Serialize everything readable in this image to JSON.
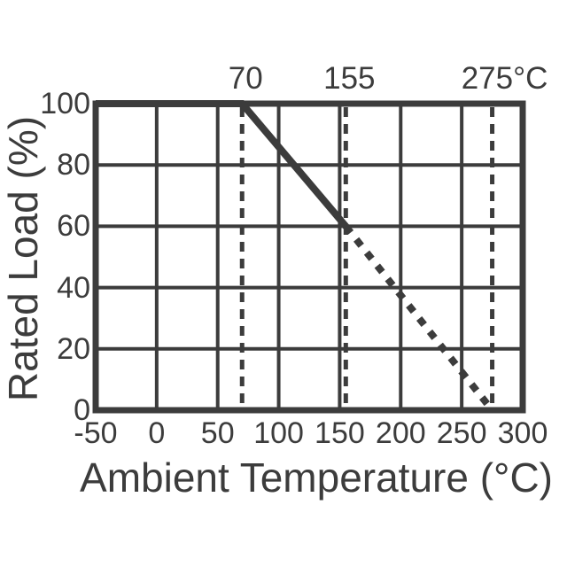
{
  "chart_data": {
    "type": "line",
    "title": "",
    "xlabel": "Ambient Temperature (°C)",
    "ylabel": "Rated Load (%)",
    "xlim": [
      -50,
      300
    ],
    "ylim": [
      0,
      100
    ],
    "x_ticks": [
      "-50",
      "0",
      "50",
      "100",
      "150",
      "200",
      "250",
      "300"
    ],
    "y_ticks": [
      "0",
      "20",
      "40",
      "60",
      "80",
      "100"
    ],
    "grid": true,
    "grid_step_x": 50,
    "grid_step_y": 20,
    "line_color": "#3c3c3c",
    "series": [
      {
        "name": "derating-curve-solid",
        "style": "solid",
        "points": [
          [
            -50,
            100
          ],
          [
            70,
            100
          ],
          [
            155,
            60
          ]
        ]
      },
      {
        "name": "derating-curve-dashed",
        "style": "dashed",
        "points": [
          [
            155,
            60
          ],
          [
            275,
            0
          ]
        ]
      }
    ],
    "markers": [
      {
        "x": 70,
        "label": "70"
      },
      {
        "x": 155,
        "label": "155"
      },
      {
        "x": 275,
        "label": "275°C"
      }
    ]
  }
}
